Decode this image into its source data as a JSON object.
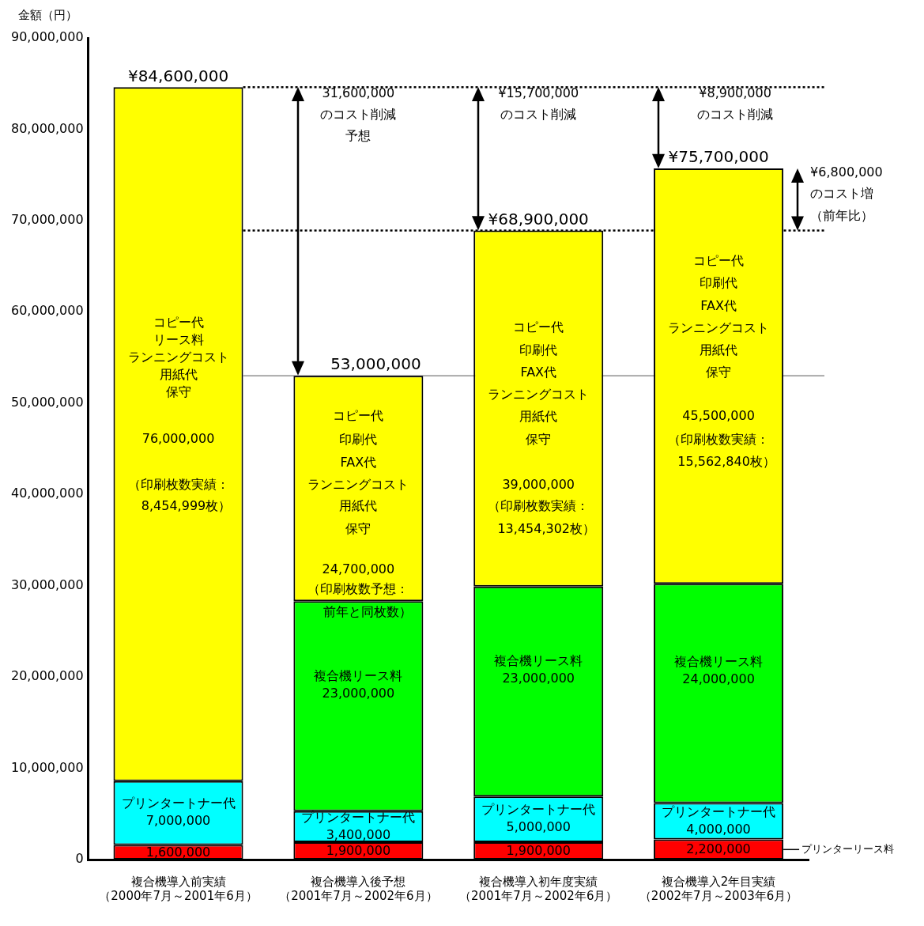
{
  "chart_data": {
    "type": "bar",
    "stacked": true,
    "ylabel": "金額（円）",
    "categories": [
      "複合機導入前実績（2000年7月～2001年6月）",
      "複合機導入後予想（2001年7月～2002年6月）",
      "複合機導入初年度実績（2001年7月～2002年6月）",
      "複合機導入2年目実績（2002年7月～2003年6月）"
    ],
    "series": [
      {
        "name": "プリンターリース料",
        "color": "#ff0000",
        "values": [
          1600000,
          1900000,
          1900000,
          2200000
        ],
        "value_labels": [
          "1,600,000",
          "1,900,000",
          "1,900,000",
          "2,200,000"
        ]
      },
      {
        "name": "プリンタートナー代",
        "color": "#00ffff",
        "values": [
          7000000,
          3400000,
          5000000,
          4000000
        ],
        "value_labels": [
          "7,000,000",
          "3,400,000",
          "5,000,000",
          "4,000,000"
        ]
      },
      {
        "name": "複合機リース料",
        "color": "#00ff00",
        "values": [
          0,
          23000000,
          23000000,
          24000000
        ],
        "value_labels": [
          null,
          "23,000,000",
          "23,000,000",
          "24,000,000"
        ]
      },
      {
        "color": "#ffff00",
        "values": [
          76000000,
          24700000,
          39000000,
          45500000
        ],
        "value_labels": [
          "76,000,000",
          "24,700,000",
          "39,000,000",
          "45,500,000"
        ]
      }
    ],
    "totals": [
      "¥84,600,000",
      "53,000,000",
      "¥68,900,000",
      "¥75,700,000"
    ],
    "ylim": [
      0,
      90000000
    ],
    "yticks": [
      0,
      {
        "value": 10000000,
        "label": "10,000,000"
      },
      {
        "value": 20000000,
        "label": "20,000,000"
      },
      {
        "value": 30000000,
        "label": "30,000,000"
      },
      {
        "value": 40000000,
        "label": "40,000,000"
      },
      {
        "value": 50000000,
        "label": "50,000,000"
      },
      {
        "value": 60000000,
        "label": "60,000,000"
      },
      {
        "value": 70000000,
        "label": "70,000,000"
      },
      {
        "value": 80000000,
        "label": "80,000,000"
      },
      {
        "value": 90000000,
        "label": "90,000,000"
      }
    ],
    "grid": false,
    "legend": false,
    "ref_lines": [
      {
        "axis": "y",
        "value": 84600000,
        "line_style": "dotted"
      },
      {
        "axis": "y",
        "value": 68900000,
        "line_style": "dotted"
      },
      {
        "axis": "y",
        "value": 53000000,
        "line_style": "solid"
      }
    ],
    "annotations": [
      "コピー代",
      "リース料",
      "ランニングコスト",
      "用紙代",
      "保守",
      "（印刷枚数実績：",
      "8,454,999枚）",
      "コピー代",
      "印刷代",
      "FAX代",
      "ランニングコスト",
      "用紙代",
      "保守",
      "（印刷枚数予想：",
      "前年と同枚数）",
      "コピー代",
      "印刷代",
      "FAX代",
      "ランニングコスト",
      "用紙代",
      "保守",
      "（印刷枚数実績：",
      "13,454,302枚）",
      "コピー代",
      "印刷代",
      "FAX代",
      "ランニングコスト",
      "用紙代",
      "保守",
      "（印刷枚数実績：",
      "15,562,840枚）",
      "31,600,000",
      "のコスト削減",
      "予想",
      "¥15,700,000",
      "のコスト削減",
      "¥8,900,000",
      "のコスト削減",
      "¥6,800,000",
      "のコスト増",
      "（前年比）"
    ]
  }
}
